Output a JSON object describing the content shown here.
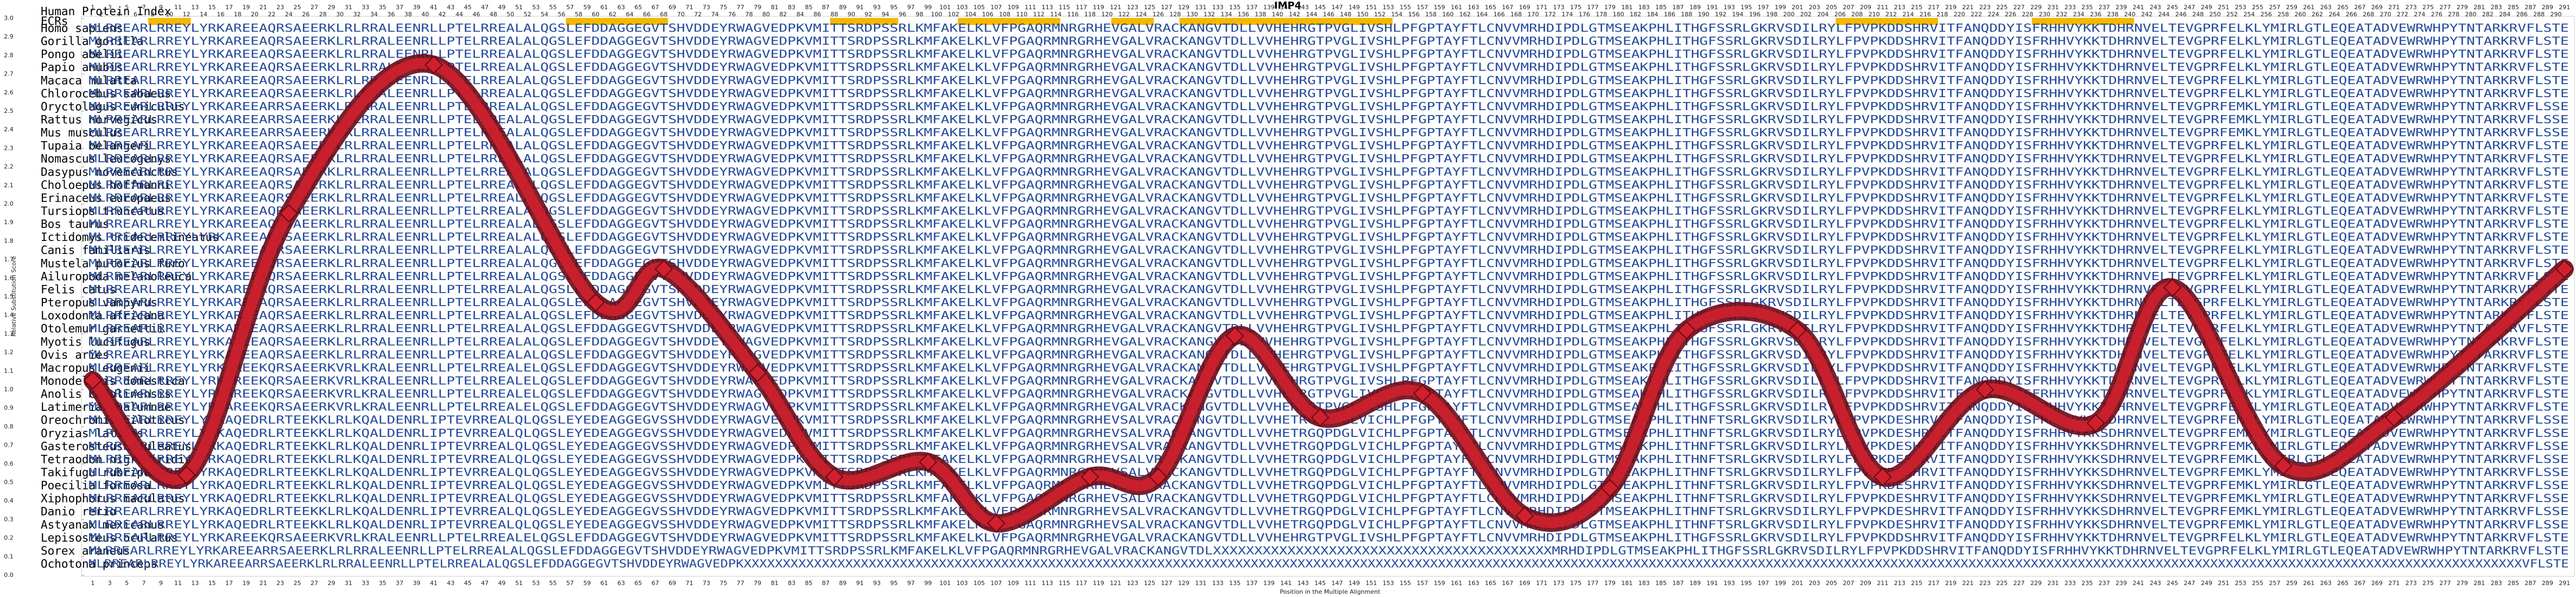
{
  "chart_data": {
    "type": "line",
    "title": "IMP4",
    "y_label": "Relative Substitution Score",
    "x_label": "Position in the Multiple Alignment",
    "x": [
      1,
      12,
      24,
      41,
      60,
      68,
      79,
      88,
      99,
      107,
      118,
      126,
      135,
      145,
      157,
      169,
      179,
      188,
      201,
      211,
      223,
      236,
      245,
      258,
      271,
      291
    ],
    "values": [
      1.05,
      0.54,
      1.95,
      2.75,
      1.47,
      1.65,
      1.09,
      0.53,
      0.61,
      0.28,
      0.53,
      0.53,
      1.29,
      0.85,
      0.98,
      0.32,
      0.47,
      1.32,
      1.32,
      0.53,
      1.0,
      0.82,
      1.55,
      0.59,
      0.85,
      1.65
    ],
    "xlim": [
      1,
      291
    ],
    "ylim": [
      0,
      3
    ],
    "yticks": [
      {
        "value": 0,
        "label": "0.0"
      },
      0.1,
      0.2,
      0.3,
      0.4,
      0.5,
      0.6,
      0.7,
      0.8,
      0.9,
      {
        "value": 1,
        "label": "1.0"
      },
      1.1,
      1.2,
      1.3,
      1.4,
      1.5,
      1.6,
      1.7,
      1.8,
      1.9,
      {
        "value": 2,
        "label": "2.0"
      },
      2.1,
      2.2,
      2.3,
      2.4,
      2.5,
      2.6,
      2.7,
      2.8,
      2.9,
      {
        "value": 3,
        "label": "3.0"
      }
    ],
    "color": "#d0202e"
  },
  "header_label": "Human Protein Index",
  "ecr_label": "ECRs",
  "ecr_color": "#f5b800",
  "ecrs": [
    [
      8,
      12
    ],
    [
      57,
      68
    ],
    [
      88,
      95
    ],
    [
      103,
      114
    ],
    [
      121,
      125
    ],
    [
      129,
      153
    ],
    [
      206,
      217
    ],
    [
      229,
      240
    ]
  ],
  "positions": [
    1,
    2,
    3,
    4,
    5,
    6,
    7,
    8,
    9,
    10,
    11,
    12,
    13,
    14,
    15,
    16,
    17,
    18,
    19,
    20,
    21,
    22,
    23,
    24,
    25,
    26,
    27,
    28,
    29,
    30,
    31,
    32,
    33,
    34,
    35,
    36,
    37,
    38,
    39,
    40,
    41,
    42,
    43,
    44,
    45,
    46,
    47,
    48,
    49,
    50,
    51,
    52,
    53,
    54,
    55,
    56,
    57,
    58,
    59,
    60,
    61,
    62,
    63,
    64,
    65,
    66,
    67,
    68,
    69,
    70,
    71,
    72,
    73,
    74,
    75,
    76,
    77,
    78,
    79,
    80,
    81,
    82,
    83,
    84,
    85,
    86,
    87,
    88,
    89,
    90,
    91,
    92,
    93,
    94,
    95,
    96,
    97,
    98,
    99,
    100,
    101,
    102,
    103,
    104,
    105,
    106,
    107,
    108,
    109,
    110,
    111,
    112,
    113,
    114,
    115,
    116,
    117,
    118,
    119,
    120,
    121,
    122,
    123,
    124,
    125,
    126,
    127,
    128,
    129,
    130,
    131,
    132,
    133,
    134,
    135,
    136,
    137,
    138,
    139,
    140,
    141,
    142,
    143,
    144,
    145,
    146,
    147,
    148,
    149,
    150,
    151,
    152,
    153,
    154,
    155,
    156,
    157,
    158,
    159,
    160,
    161,
    162,
    163,
    164,
    165,
    166,
    167,
    168,
    169,
    170,
    171,
    172,
    173,
    174,
    175,
    176,
    177,
    178,
    179,
    180,
    181,
    182,
    183,
    184,
    185,
    186,
    187,
    188,
    189,
    190,
    191,
    192,
    193,
    194,
    195,
    196,
    197,
    198,
    199,
    200,
    201,
    202,
    203,
    204,
    205,
    206,
    207,
    208,
    209,
    210,
    211,
    212,
    213,
    214,
    215,
    216,
    217,
    218,
    219,
    220,
    221,
    222,
    223,
    224,
    225,
    226,
    227,
    228,
    229,
    230,
    231,
    232,
    233,
    234,
    235,
    236,
    237,
    238,
    239,
    240,
    241,
    242,
    243,
    244,
    245,
    246,
    247,
    248,
    249,
    250,
    251,
    252,
    253,
    254,
    255,
    256,
    257,
    258,
    259,
    260,
    261,
    262,
    263,
    264,
    265,
    266,
    267,
    268,
    269,
    270,
    271,
    272,
    273,
    274,
    275,
    276,
    277,
    278,
    279,
    280,
    281,
    282,
    283,
    284,
    285,
    286,
    287,
    288,
    289,
    290,
    291
  ],
  "species": [
    "Homo sapiens",
    "Gorilla gorilla",
    "Pongo abelii",
    "Papio anubis",
    "Macaca mulatta",
    "Chlorocebus sabaeus",
    "Oryctolagus cuniculus",
    "Rattus norvegicus",
    "Mus musculus",
    "Tupaia belangeri",
    "Nomascus leucogenys",
    "Dasypus novemcinctus",
    "Choloepus hoffmanni",
    "Erinaceus europaeus",
    "Tursiops truncatus",
    "Bos taurus",
    "Ictidomys tridecemlineatus",
    "Canis familiaris",
    "Mustela putorius furo",
    "Ailuropoda melanoleuca",
    "Felis catus",
    "Pteropus vampyrus",
    "Loxodonta africana",
    "Otolemur garnettii",
    "Myotis lucifugus",
    "Ovis aries",
    "Macropus eugenii",
    "Monodelphis domestica",
    "Anolis carolinensis",
    "Latimeria chalumnae",
    "Oreochromis niloticus",
    "Oryzias latipes",
    "Gasterosteus aculeatus",
    "Tetraodon nigroviridis",
    "Takifugu rubripes",
    "Poecilia formosa",
    "Xiphophorus maculatus",
    "Danio rerio",
    "Astyanax mexicanus",
    "Lepisosteus oculatus",
    "Sorex araneus",
    "Ochotona princeps"
  ],
  "sequences": [
    "MLRREARLRREYLYRKAREEAQRSAEERKLRLRRALEENRLLPTELRREALALQGSLEFDDAGGEGVTSHVDDEYRWAGVEDPKVMITTSRDPSSRLKMFAKELKLVFPGAQRMNRGRHEVGALVRACKANGVTDLLVVHEHRGTPVGLIVSHLPFGPTAYFTLCNVVMRHDIPDLGTMSEAKPHLITHGFSSRLGKRVSDILRYLFPVPKDDSHRVITFANQDDYISFRHHVYKKTDHRNVELTEVGPRFELKLYMIRLGTLEQEATADVEWRWHPYTNTARKRVFLSTE",
    "MLRREARLRREYLYRKAREEAQRSAEERKLRLRRALEENRLLPTELRREALALQGSLEFDDAGGEGVTSHVDDEYRWAGVEDPKVMITTSRDPSSRLKMFAKELKLVFPGAQRMNRGRHEVGALVRACKANGVTDLLVVHEHRGTPVGLIVSHLPFGPTAYFTLCNVVMRHDIPDLGTMSEAKPHLITHGFSSRLGKRVSDILRYLFPVPKDDSHRVITFANQDDYISFRHHVYKKTDHRNVELTEVGPRFELKLYMIRLGTLEQEATADVEWRWHPYTNTARKRVFLSTE",
    "MLRREARLRREYLYRKAREEAQRSAEERKLRLRRALEENRLLPTELRREALALQGSLEFDDAGGEGVTSHVDDEYRWAGVEDPKVMITTSRDPSSRLKMFAKELKLVFPGAQRMNRGRHEVGALVRACKANGVTDLLVVHEHRGTPVGLIVSHLPFGPTAYFTLCNVVMRHDIPDLGTMSEAKPHLITHGFSSRLGKRVSDILRYLFPVPKDDSHRVITFANQDDYISFRHHVYKKTDHRNVELTEVGPRFELKLYMIRLGTLEQEATADVEWRWHPYTNTARKRVFLSTE",
    "MLRREARLRREYLYRKAREEAQRSAEERKLRLRRALEENRLLPTELRREALALQGSLEFDDAGGEGVTSHVDDEYRWAGVEDPKVMITTSRDPSSRLKMFAKELKLVFPGAQRMNRGRHEVGALVRACKANGVTDLLVVHEHRGTPVGLIVSHLPFGPTAYFTLCNVVMRHDIPDLGTMSEAKPHLITHGFSSRLGKRVSDILRYLFPVPKDDSHRVITFANQDDYISFRHHVYKKTDHRNVELTEVGPRFELKLYMIRLGTLEQEATADVEWRWHPYTNTARKRVFLSTE",
    "MLRREARLRREYLYRKAREEAQRSAEERKLRLRRALEENRLLPTELRREALALQGSLEFDDAGGEGVTSHVDDEYRWAGVEDPKVMITTSRDPSSRLKMFAKELKLVFPGAQRMNRGRHEVGALVRACKANGVTDLLVVHEHRGTPVGLIVSHLPFGPTAYFTLCNVVMRHDIPDLGTMSEAKPHLITHGFSSRLGKRVSDILRYLFPVPKDDSHRVITFANQDDYISFRHHVYKKTDHRNVELTEVGPRFELKLYMIRLGTLEQEATADVEWRWHPYTNTARKRVFLSTE",
    "MLRREARLRREYLYRKAREEAQRSAEERKLRLRRALEENRLLPTELRREALALQGSLEFDDAGGEGVTSHVDDEYRWAGVEDPKVMITTSRDPSSRLKMFAKELKLVFPGAQRMNRGRHEVGALVRACKANGVTDLLVVHEHRGTPVGLIVSHLPFGPTAYFTLCNVVMRHDIPDLGTMSEAKPHLITHGFSSRLGKRVSDILRYLFPVPKDDSHRVITFANQDDYISFRHHVYKKTDHRNVELTEVGPRFELKLYMIRLGTLEQEATADVEWRWHPYTNTARKRVFLSTE",
    "MLRREARLRREYLYRKAREEARRSAEERKLRLRRALEENRLLPTELRREALALQGSLEFDDAGGEGVTSHVDDEYRWAGVEDPKVMITTSRDPSSRLKMFAKELKLVFPGAQRMNRGRHEVGALVRACKANGVTDLLVVHEHRGTPVGLIVSHLPFGPTAYFTLCNVVMRHDIPDLGTMSEAKPHLITHGFSSRLGKRVSDILRYLFPVPKDDSHRVITFANQDDYISFRHHVYKKTDHRNVELTEVGPRFEMKLYMIRLGTLEQEATADVEWRWHPYTNTARKRVFLSSE",
    "MLRREARLRREYLYRKAREEARRSAEERKLRLRRALEENRLLPTELRREALALQGSLEFDDAGGEGVTSHVDDEYRWAGVEDPKVMITTSRDPSSRLKMFAKELKLVFPGAQRMNRGRHEVGALVRACKANGVTDLLVVHEHRGTPVGLIVSHLPFGPTAYFTLCNVVMRHDIPDLGTMSEAKPHLITHGFSSRLGKRVSDILRYLFPVPKDDSHRVITFANQDDYISFRHHVYKKTDHRNVELTEVGPRFEMKLYMIRLGTLEQEATADVEWRWHPYTNTARKRVFLSSE",
    "MLRREARLRREYLYRKAREEARRSAEERKLRLRRALEENRLLPTELRREALALQGSLEFDDAGGEGVTSHVDDEYRWAGVEDPKVMITTSRDPSSRLKMFAKELKLVFPGAQRMNRGRHEVGALVRACKANGVTDLLVVHEHRGTPVGLIVSHLPFGPTAYFTLCNVVMRHDIPDLGTMSEAKPHLITHGFSSRLGKRVSDILRYLFPVPKDDSHRVITFANQDDYISFRHHVYKKTDHRNVELTEVGPRFEMKLYMIRLGTLEQEATADVEWRWHPYTNTARKRVFLSSE",
    "MLRREARLRREYLYRKAREEAQRSAEERKLRLRRALEENRLLPTELRREALALQGSLEFDDAGGEGVTSHVDDEYRWAGVEDPKVMITTSRDPSSRLKMFAKELKLVFPGAQRMNRGRHEVGALVRACKANGVTDLLVVHEHRGTPVGLIVSHLPFGPTAYFTLCNVVMRHDIPDLGTMSEAKPHLITHGFSSRLGKRVSDILRYLFPVPKDDSHRVITFANQDDYISFRHHVYKKTDHRNVELTEVGPRFELKLYMIRLGTLEQEATADVEWRWHPYTNTARKRVFLSTE",
    "MLRREARLRREYLYRKAREEAQRSAEERKLRLRRALEENRLLPTELRREALALQGSLEFDDAGGEGVTSHVDDEYRWAGVEDPKVMITTSRDPSSRLKMFAKELKLVFPGAQRMNRGRHEVGALVRACKANGVTDLLVVHEHRGTPVGLIVSHLPFGPTAYFTLCNVVMRHDIPDLGTMSEAKPHLITHGFSSRLGKRVSDILRYLFPVPKDDSHRVITFANQDDYISFRHHVYKKTDHRNVELTEVGPRFELKLYMIRLGTLEQEATADVEWRWHPYTNTARKRVFLSTE",
    "MLRREARLRREYLYRKAREEAQRSAEERKLRLRRALEENRLLPTELRREALALQGSLEFDDAGGEGVTSHVDDEYRWAGVEDPKVMITTSRDPSSRLKMFAKELKLVFPGAQRMNRGRHEVGALVRACKANGVTDLLVVHEHRGTPVGLIVSHLPFGPTAYFTLCNVVMRHDIPDLGTMSEAKPHLITHGFSSRLGKRVSDILRYLFPVPKDDSHRVITFANQDDYISFRHHVYKKTDHRNVELTEVGPRFELKLYMIRLGTLEQEATADVEWRWHPYTNTARKRVFLSTE",
    "MLRREARLRREYLYRKAREEAQRSAEERKLRLRRALEENRLLPTELRREALALQGSLEFDDAGGEGVTSHVDDEYRWAGVEDPKVMITTSRDPSSRLKMFAKELKLVFPGAQRMNRGRHEVGALVRACKANGVTDLLVVHEHRGTPVGLIVSHLPFGPTAYFTLCNVVMRHDIPDLGTMSEAKPHLITHGFSSRLGKRVSDILRYLFPVPKDDSHRVITFANQDDYISFRHHVYKKTDHRNVELTEVGPRFELKLYMIRLGTLEQEATADVEWRWHPYTNTARKRVFLSTE",
    "MLRREARLRREYLYRKAREEAQRSAEERKLRLRRALEENRLLPTELRREALALQGSLEFDDAGGEGVTSHVDDEYRWAGVEDPKVMITTSRDPSSRLKMFAKELKLVFPGAQRMNRGRHEVGALVRACKANGVTDLLVVHEHRGTPVGLIVSHLPFGPTAYFTLCNVVMRHDIPDLGTMSEAKPHLITHGFSSRLGKRVSDILRYLFPVPKDDSHRVITFANQDDYISFRHHVYKKTDHRNVELTEVGPRFELKLYMIRLGTLEQEATADVEWRWHPYTNTARKRVFLSTE",
    "MLRREARLRREYLYRKAREEAQRSAEERKLRLRRALEENRLLPTELRREALALQGSLEFDDAGGEGVTSHVDDEYRWAGVEDPKVMITTSRDPSSRLKMFAKELKLVFPGAQRMNRGRHEVGALVRACKANGVTDLLVVHEHRGTPVGLIVSHLPFGPTAYFTLCNVVMRHDIPDLGTMSEAKPHLITHGFSSRLGKRVSDILRYLFPVPKDDSHRVITFANQDDYISFRHHVYKKTDHRNVELTEVGPRFELKLYMIRLGTLEQEATADVEWRWHPYTNTARKRVFLSTE",
    "MLRREARLRREYLYRKAREEAQRSAEERKLRLRRALEENRLLPTELRREALALQGSLEFDDAGGEGVTSHVDDEYRWAGVEDPKVMITTSRDPSSRLKMFAKELKLVFPGAQRMNRGRHEVGALVRACKANGVTDLLVVHEHRGTPVGLIVSHLPFGPTAYFTLCNVVMRHDIPDLGTMSEAKPHLITHGFSSRLGKRVSDILRYLFPVPKDDSHRVITFANQDDYISFRHHVYKKTDHRNVELTEVGPRFELKLYMIRLGTLEQEATADVEWRWHPYTNTARKRVFLSTE",
    "MLRREARLRREYLYRKAREEAQRSAEERKLRLRRALEENRLLPTELRREALALQGSLEFDDAGGEGVTSHVDDEYRWAGVEDPKVMITTSRDPSSRLKMFAKELKLVFPGAQRMNRGRHEVGALVRACKANGVTDLLVVHEHRGTPVGLIVSHLPFGPTAYFTLCNVVMRHDIPDLGTMSEAKPHLITHGFSSRLGKRVSDILRYLFPVPKDDSHRVITFANQDDYISFRHHVYKKTDHRNVELTEVGPRFELKLYMIRLGTLEQEATADVEWRWHPYTNTARKRVFLSTE",
    "MLRREARLRREYLYRKAREEAQRSAEERKLRLRRALEENRLLPTELRREALALQGSLEFDDAGGEGVTSHVDDEYRWAGVEDPKVMITTSRDPSSRLKMFAKELKLVFPGAQRMNRGRHEVGALVRACKANGVTDLLVVHEHRGTPVGLIVSHLPFGPTAYFTLCNVVMRHDIPDLGTMSEAKPHLITHGFSSRLGKRVSDILRYLFPVPKDDSHRVITFANQDDYISFRHHVYKKTDHRNVELTEVGPRFELKLYMIRLGTLEQEATADVEWRWHPYTNTARKRVFLSTE",
    "MLRREARLRREYLYRKAREEAQRSAEERKLRLRRALEENRLLPTELRREALALQGSLEFDDAGGEGVTSHVDDEYRWAGVEDPKVMITTSRDPSSRLKMFAKELKLVFPGAQRMNRGRHEVGALVRACKANGVTDLLVVHEHRGTPVGLIVSHLPFGPTAYFTLCNVVMRHDIPDLGTMSEAKPHLITHGFSSRLGKRVSDILRYLFPVPKDDSHRVITFANQDDYISFRHHVYKKTDHRNVELTEVGPRFELKLYMIRLGTLEQEATADVEWRWHPYTNTARKRVFLSTE",
    "MLRREARLRREYLYRKAREEAQRSAEERKLRLRRALEENRLLPTELRREALALQGSLEFDDAGGEGVTSHVDDEYRWAGVEDPKVMITTSRDPSSRLKMFAKELKLVFPGAQRMNRGRHEVGALVRACKANGVTDLLVVHEHRGTPVGLIVSHLPFGPTAYFTLCNVVMRHDIPDLGTMSEAKPHLITHGFSSRLGKRVSDILRYLFPVPKDDSHRVITFANQDDYISFRHHVYKKTDHRNVELTEVGPRFELKLYMIRLGTLEQEATADVEWRWHPYTNTARKRVFLSTE",
    "MLRREARLRREYLYRKAREEAQRSAEERKLRLRRALEENRLLPTELRREALALQGSLEFDDAGGEGVTSHVDDEYRWAGVEDPKVMITTSRDPSSRLKMFAKELKLVFPGAQRMNRGRHEVGALVRACKANGVTDLLVVHEHRGTPVGLIVSHLPFGPTAYFTLCNVVMRHDIPDLGTMSEAKPHLITHGFSSRLGKRVSDILRYLFPVPKDDSHRVITFANQDDYISFRHHVYKKTDHRNVELTEVGPRFELKLYMIRLGTLEQEATADVEWRWHPYTNTARKRVFLSTE",
    "MLRREARLRREYLYRKAREEAQRSAEERKLRLRRALEENRLLPTELRREALALQGSLEFDDAGGEGVTSHVDDEYRWAGVEDPKVMITTSRDPSSRLKMFAKELKLVFPGAQRMNRGRHEVGALVRACKANGVTDLLVVHEHRGTPVGLIVSHLPFGPTAYFTLCNVVMRHDIPDLGTMSEAKPHLITHGFSSRLGKRVSDILRYLFPVPKDDSHRVITFANQDDYISFRHHVYKKTDHRNVELTEVGPRFELKLYMIRLGTLEQEATADVEWRWHPYTNTARKRVFLSTE",
    "MLRREARLRREYLYRKAREEAQRSAEERKLRLRRALEENRLLPTELRREALALQGSLEFDDAGGEGVTSHVDDEYRWAGVEDPKVMITTSRDPSSRLKMFAKELKLVFPGAQRMNRGRHEVGALVRACKANGVTDLLVVHEHRGTPVGLIVSHLPFGPTAYFTLCNVVMRHDIPDLGTMSEAKPHLITHGFSSRLGKRVSDILRYLFPVPKDDSHRVITFANQDDYISFRHHVYKKTDHRNVELTEVGPRFELKLYMIRLGTLEQEATADVEWRWHPYTNTARKRVFLSTE",
    "MLRREARLRREYLYRKAREEAQRSAEERKLRLRRALEENRLLPTELRREALALQGSLEFDDAGGEGVTSHVDDEYRWAGVEDPKVMITTSRDPSSRLKMFAKELKLVFPGAQRMNRGRHEVGALVRACKANGVTDLLVVHEHRGTPVGLIVSHLPFGPTAYFTLCNVVMRHDIPDLGTMSEAKPHLITHGFSSRLGKRVSDILRYLFPVPKDDSHRVITFANQDDYISFRHHVYKKTDHRNVELTEVGPRFELKLYMIRLGTLEQEATADVEWRWHPYTNTARKRVFLSTE",
    "MLRREARLRREYLYRKAREEAQRSAEERKLRLRRALEENRLLPTELRREALALQGSLEFDDAGGEGVTSHVDDEYRWAGVEDPKVMITTSRDPSSRLKMFAKELKLVFPGAQRMNRGRHEVGALVRACKANGVTDLLVVHEHRGTPVGLIVSHLPFGPTAYFTLCNVVMRHDIPDLGTMSEAKPHLITHGFSSRLGKRVSDILRYLFPVPKDDSHRVITFANQDDYISFRHHVYKKTDHRNVELTEVGPRFELKLYMIRLGTLEQEATADVEWRWHPYTNTARKRVFLSTE",
    "MLRREARLRREYLYRKAREEAQRSAEERKLRLRRALEENRLLPTELRREALALQGSLEFDDAGGEGVTSHVDDEYRWAGVEDPKVMITTSRDPSSRLKMFAKELKLVFPGAQRMNRGRHEVGALVRACKANGVTDLLVVHEHRGTPVGLIVSHLPFGPTAYFTLCNVVMRHDIPDLGTMSEAKPHLITHGFSSRLGKRVSDILRYLFPVPKDDSHRVITFANQDDYISFRHHVYKKTDHRNVELTEVGPRFELKLYMIRLGTLEQEATADVEWRWHPYTNTARKRVFLSTE",
    "MLRREARLRREYLYRKAREEKQRSAEERKVRLKRALEENRLLPTELRREALELQGSLEFDDAGGEGVTSHVDDEYRWAGVEDPKVMITTSRDPSSRLKMFAKELKLVFPGAQRMNRGRHEVGALVRACKANGVTDLLVVHEHRGTPVGLIVSHLPFGPTAYFTLCNVVMRHDIPDLGTMSEAKPHLITHGFSSRLGKRVSDILRYLFPVPKDDSHRVITFANQDDYISFRHHVYKKTDHRNVELTEVGPRFELKLYMIRLGTLEQEATADVEWRWHPYTNTARKRVFLSTE",
    "MLRREARLRREYLYRKAREEKQRSAEERKVRLKRALEENRLLPTELRREALELQGSLEFDDAGGEGVTSHVDDEYRWAGVEDPKVMITTSRDPSSRLKMFAKELKLVFPGAQRMNRGRHEVGALVRACKANGVTDLLVVHEHRGTPVGLIVSHLPFGPTAYFTLCNVVMRHDIPDLGTMSEAKPHLITHGFSSRLGKRVSDILRYLFPVPKDDSHRVITFANQDDYISFRHHVYKKTDHRNVELTEVGPRFELKLYMIRLGTLEQEATADVEWRWHPYTNTARKRVFLSTE",
    "MLRREARLRREYLYRKAREEKQRSAEERKVRLKRALEENRLLPTELRREALELQGSLEFDDAGGEGVTSHVDDEYRWAGVEDPKVMITTSRDPSSRLKMFAKELKLVFPGAQRMNRGRHEVGALVRACKANGVTDLLVVHEHRGTPVGLIVSHLPFGPTAYFTLCNVVMRHDIPDLGTMSEAKPHLITHGFSSRLGKRVSDILRYLFPVPKDDSHRVITFANQDDYISFRHHVYKKTDHRNVELTEVGPRFELKLYMIRLGTLEQEATADVEWRWHPYTNTARKRVFLSTE",
    "MLRREARLRREYLYRKAREEKQRSAEERKVRLKRALEENRLLPTELRREALELQGSLEFDDAGGEGVTSHVDDEYRWAGVEDPKVMITTSRDPSSRLKMFAKELKLVFPGAQRMNRGRHEVGALVRACKANGVTDLLVVHEHRGTPVGLIVSHLPFGPTAYFTLCNVVMRHDIPDLGTMSEAKPHLITHGFSSRLGKRVSDILRYLFPVPKDDSHRVITFANQDDYISFRHHVYKKTDHRNVELTEVGPRFELKLYMIRLGTLEQEATADVEWRWHPYTNTARKRVFLSTE",
    "MLRREARLRREYLYRKAQEDRLRTEEKKLRLKQALDENRLIPTEVRREALQLQGSLEYEDEAGGEGVSSHVDDEYRWAGVEDPKVMITTSRDPSSRLKMFAKELKLVFPGAQRMNRGRHEVSALVRACKANGVTDLLVVHETRGQPDGLVICHLPFGPTAYFTLCNVVMRHDIPDLGTMSEAKPHLITHNFTSRLGKRVSDILRYLFPVPKDESHRVITFANQDDYISFRHHVYKKSDHRNVELTEVGPRFEMKLYMIRLGTLEQEATADVEWRWHPYTNTARKRVFLSSE",
    "MLRREARLRREYLYRKAQEDRLRTEEKKLRLKQALDENRLIPTEVRREALQLQGSLEYEDEAGGEGVSSHVDDEYRWAGVEDPKVMITTSRDPSSRLKMFAKELKLVFPGAQRMNRGRHEVSALVRACKANGVTDLLVVHETRGQPDGLVICHLPFGPTAYFTLCNVVMRHDIPDLGTMSEAKPHLITHNFTSRLGKRVSDILRYLFPVPKDESHRVITFANQDDYISFRHHVYKKSDHRNVELTEVGPRFEMKLYMIRLGTLEQEATADVEWRWHPYTNTARKRVFLSSE",
    "MLRREARLRREYLYRKAQEDRLRTEEKKLRLKQALDENRLIPTEVRREALQLQGSLEYEDEAGGEGVSSHVDDEYRWAGVEDPKVMITTSRDPSSRLKMFAKELKLVFPGAQRMNRGRHEVSALVRACKANGVTDLLVVHETRGQPDGLVICHLPFGPTAYFTLCNVVMRHDIPDLGTMSEAKPHLITHNFTSRLGKRVSDILRYLFPVPKDESHRVITFANQDDYISFRHHVYKKSDHRNVELTEVGPRFEMKLYMIRLGTLEQEATADVEWRWHPYTNTARKRVFLSSE",
    "MLRREARLRREYLYRKAQEDRLRTEEKKLRLKQALDENRLIPTEVRREALQLQGSLEYEDEAGGEGVSSHVDDEYRWAGVEDPKVMITTSRDPSSRLKMFAKELKLVFPGAQRMNRGRHEVSALVRACKANGVTDLLVVHETRGQPDGLVICHLPFGPTAYFTLCNVVMRHDIPDLGTMSEAKPHLITHNFTSRLGKRVSDILRYLFPVPKDESHRVITFANQDDYISFRHHVYKKSDHRNVELTEVGPRFEMKLYMIRLGTLEQEATADVEWRWHPYTNTARKRVFLSSE",
    "MLRREARLRREYLYRKAQEDRLRTEEKKLRLKQALDENRLIPTEVRREALQLQGSLEYEDEAGGEGVSSHVDDEYRWAGVEDPKVMITTSRDPSSRLKMFAKELKLVFPGAQRMNRGRHEVSALVRACKANGVTDLLVVHETRGQPDGLVICHLPFGPTAYFTLCNVVMRHDIPDLGTMSEAKPHLITHNFTSRLGKRVSDILRYLFPVPKDESHRVITFANQDDYISFRHHVYKKSDHRNVELTEVGPRFEMKLYMIRLGTLEQEATADVEWRWHPYTNTARKRVFLSSE",
    "MLRREARLRREYLYRKAQEDRLRTEEKKLRLKQALDENRLIPTEVRREALQLQGSLEYEDEAGGEGVSSHVDDEYRWAGVEDPKVMITTSRDPSSRLKMFAKELKLVFPGAQRMNRGRHEVSALVRACKANGVTDLLVVHETRGQPDGLVICHLPFGPTAYFTLCNVVMRHDIPDLGTMSEAKPHLITHNFTSRLGKRVSDILRYLFPVPKDESHRVITFANQDDYISFRHHVYKKSDHRNVELTEVGPRFEMKLYMIRLGTLEQEATADVEWRWHPYTNTARKRVFLSSE",
    "MLRREARLRREYLYRKAQEDRLRTEEKKLRLKQALDENRLIPTEVRREALQLQGSLEYEDEAGGEGVSSHVDDEYRWAGVEDPKVMITTSRDPSSRLKMFAKELKLVFPGAQRMNRGRHEVSALVRACKANGVTDLLVVHETRGQPDGLVICHLPFGPTAYFTLCNVVMRHDIPDLGTMSEAKPHLITHNFTSRLGKRVSDILRYLFPVPKDESHRVITFANQDDYISFRHHVYKKSDHRNVELTEVGPRFEMKLYMIRLGTLEQEATADVEWRWHPYTNTARKRVFLSSE",
    "MLRREARLRREYLYRKAQEDRLRTEEKKLRLKQALDENRLIPTEVRREALQLQGSLEYEDEAGGEGVSSHVDDEYRWAGVEDPKVMITTSRDPSSRLKMFAKELKLVFPGAQRMNRGRHEVSALVRACKANGVTDLLVVHETRGQPDGLVICHLPFGPTAYFTLCNVVMRHDIPDLGTMSEAKPHLITHNFTSRLGKRVSDILRYLFPVPKDESHRVITFANQDDYISFRHHVYKKSDHRNVELTEVGPRFEMKLYMIRLGTLEQEATADVEWRWHPYTNTARKRVFLSSE",
    "MLRREARLRREYLYRKAQEDRLRTEEKKLRLKQALDENRLIPTEVRREALQLQGSLEYEDEAGGEGVSSHVDDEYRWAGVEDPKVMITTSRDPSSRLKMFAKELKLVFPGAQRMNRGRHEVSALVRACKANGVTDLLVVHETRGQPDGLVICHLPFGPTAYFTLCNVVMRHDIPDLGTMSEAKPHLITHNFTSRLGKRVSDILRYLFPVPKDESHRVITFANQDDYISFRHHVYKKSDHRNVELTEVGPRFEMKLYMIRLGTLEQEATADVEWRWHPYTNTARKRVFLSSE",
    "MLRREARLRREYLYRKAREEKQRSAEERKVRLKRALEENRLLPTELRREALELQGSLEFDDAGGEGVTSHVDDEYRWAGVEDPKVMITTSRDPSSRLKMFAKELKLVFPGAQRMNRGRHEVGALVRACKANGVTDLLVVHEHRGTPVGLIVSHLPFGPTAYFTLCNVVMRHDIPDLGTMSEAKPHLITHGFSSRLGKRVSDILRYLFPVPKDDSHRVITFANQDDYISFRHHVYKKTDHRNVELTEVGPRFELKLYMIRLGTLEQEATADVEWRWHPYTNTARKRVFLSTE",
    "MLRREARLRREYLYRKAREEARRSAEERKLRLRRALEENRLLPTELRREALALQGSLEFDDAGGEGVTSHVDDEYRWAGVEDPKVMITTSRDPSSRLKMFAKELKLVFPGAQRMNRGRHEVGALVRACKANGVTDLXXXXXXXXXXXXXXXXXXXXXXXXXXXXXXXXXXXXXXXXXMRHDIPDLGTMSEAKPHLITHGFSSRLGKRVSDILRYLFPVPKDDSHRVITFANQDDYISFRHHVYKKTDHRNVELTEVGPRFELKLYMIRLGTLEQEATADVEWRWHPYTNTARKRVFLSTE",
    "MLRREARLRREYLYRKAREEARRSAEERKLRLRRALEENRLLPTELRREALALQGSLEFDDAGGEGVTSHVDDEYRWAGVEDPKXXXXXXXXXXXXXXXXXXXXXXXXXXXXXXXXXXXXXXXXXXXXXXXXXXXXXXXXXXXXXXXXXXXXXXXXXXXXXXXXXXXXXXXXXXXXXXXXXXXXXXXXXXXXXXXXXXXXXXXXXXXXXXXXXXXXXXXXXXXXXXXXXXXXXXXXXXXXXXXXXXXXXXXXXXXXXXXXXXXXXXXXXXXXXXXXXXXXXXXXXXXXXXXXXXXXXXXXXXXXXXXXXXXXVFLSTE"
  ]
}
